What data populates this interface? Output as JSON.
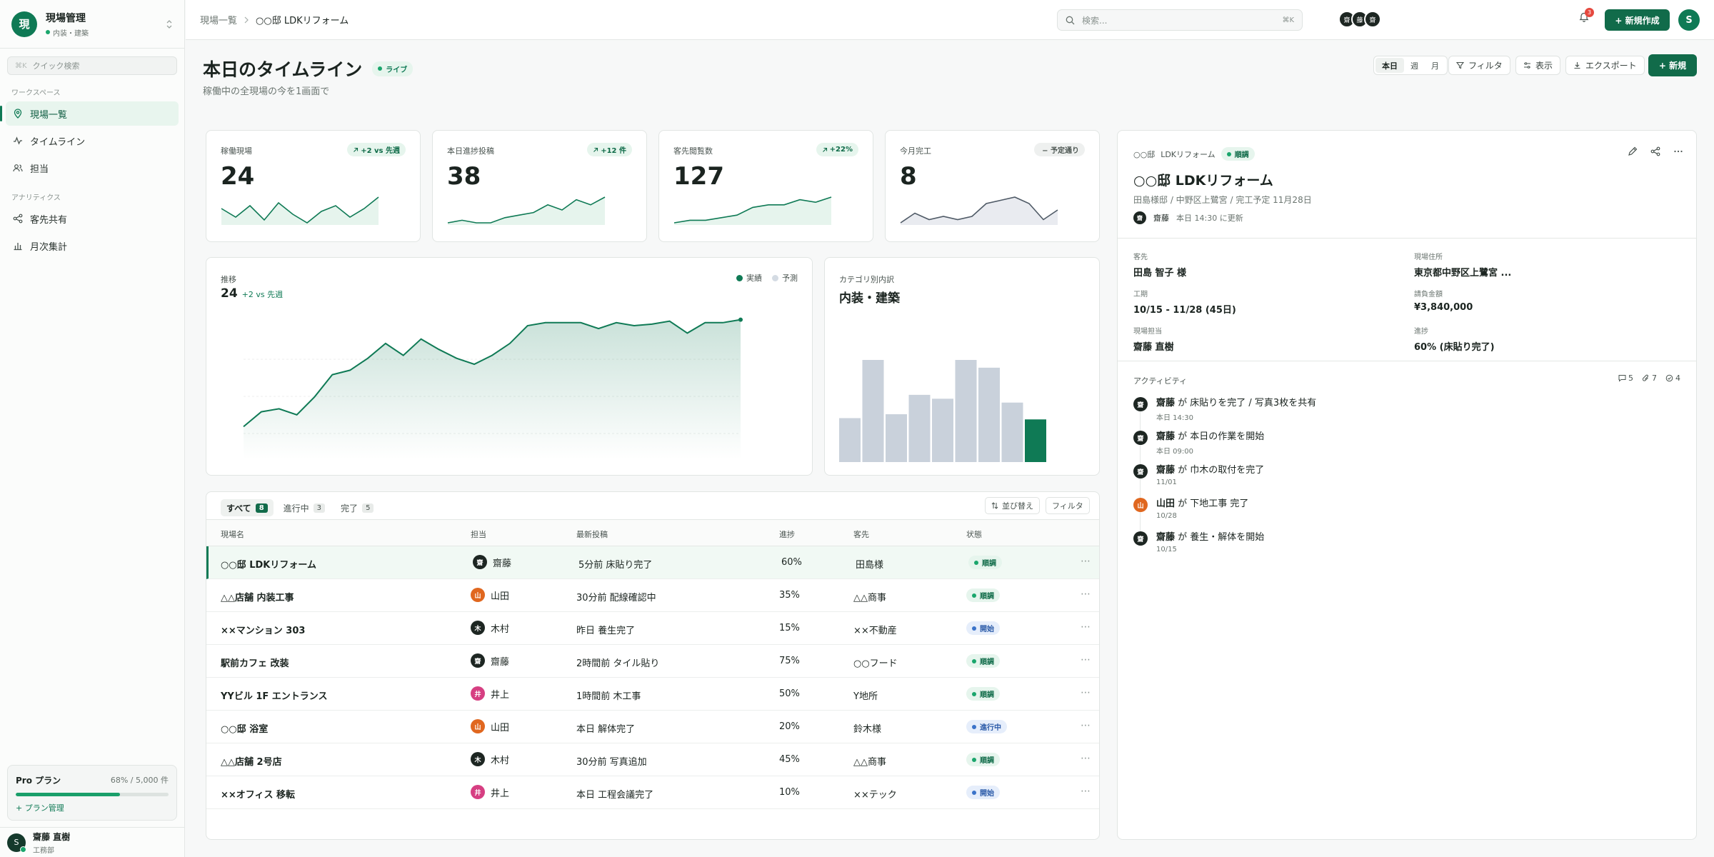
{
  "sidebar": {
    "app_title": "現場管理",
    "app_sub": "内装・建築",
    "logo": "現",
    "quick_kbd": "⌘K",
    "quick_placeholder": "クイック検索",
    "workspace_label": "ワークスペース",
    "analytics_label": "アナリティクス",
    "workspace_items": [
      {
        "label": "現場一覧",
        "icon": "map-pin-icon"
      },
      {
        "label": "タイムライン",
        "icon": "activity-icon"
      },
      {
        "label": "担当",
        "icon": "users-icon"
      }
    ],
    "analytics_items": [
      {
        "label": "客先共有",
        "icon": "share-icon"
      },
      {
        "label": "月次集計",
        "icon": "bar-chart-icon"
      }
    ],
    "plan": {
      "name": "Pro プラン",
      "usage": "68% / 5,000 件",
      "progress": 0.68,
      "link": "+ プラン管理"
    },
    "user": {
      "initial": "S",
      "name": "齋藤 直樹",
      "role": "工務部"
    }
  },
  "topbar": {
    "breadcrumb": [
      "現場一覧",
      "○○邸 LDKリフォーム"
    ],
    "search_placeholder": "検索...",
    "search_kbd": "⌘K",
    "avatars": [
      "齋",
      "藤",
      "齋"
    ],
    "notifications": "3",
    "new_label": "+ 新規作成",
    "me": "S"
  },
  "header": {
    "title": "本日のタイムライン",
    "live": "ライブ",
    "subtitle": "稼働中の全現場の今を1画面で",
    "segments": [
      "本日",
      "週",
      "月"
    ],
    "filter": "フィルタ",
    "view": "表示",
    "export": "エクスポート",
    "new": "+ 新規"
  },
  "kpis": [
    {
      "label": "稼働現場",
      "value": "24",
      "chip": "+2 vs 先週",
      "trend": [
        8,
        5,
        9,
        4,
        10,
        6,
        3,
        7,
        9,
        5,
        8,
        12
      ]
    },
    {
      "label": "本日進捗投稿",
      "value": "38",
      "chip": "+12 件",
      "trend": [
        2,
        3,
        2,
        2,
        4,
        5,
        6,
        9,
        7,
        11,
        9,
        12
      ]
    },
    {
      "label": "客先閲覧数",
      "value": "127",
      "chip": "+22%",
      "trend": [
        2,
        3,
        3,
        4,
        5,
        8,
        9,
        9,
        11,
        10,
        12
      ]
    },
    {
      "label": "今月完工",
      "value": "8",
      "chip": "− 予定通り",
      "trend": [
        3,
        6,
        4,
        5,
        4,
        5,
        9,
        10,
        11,
        9,
        4,
        7
      ]
    }
  ],
  "trend_panel": {
    "label": "推移",
    "value": "24",
    "delta": "+2 vs 先週",
    "legend": [
      "実績",
      "予測"
    ]
  },
  "category_panel": {
    "label": "カテゴリ別内訳",
    "title": "内装・建築"
  },
  "chart_data": [
    {
      "type": "line",
      "title": "推移",
      "x": [
        1,
        2,
        3,
        4,
        5,
        6,
        7,
        8,
        9,
        10,
        11,
        12,
        13,
        14,
        15,
        16,
        17,
        18,
        19,
        20,
        21,
        22,
        23,
        24,
        25,
        26,
        27,
        28,
        29
      ],
      "series": [
        {
          "name": "実績",
          "values": [
            2,
            3,
            3.2,
            2.8,
            4,
            5.5,
            5.8,
            6.6,
            7.6,
            6.8,
            7.9,
            7.2,
            6.6,
            6.2,
            6.8,
            7.6,
            8.8,
            9,
            9,
            9,
            8.6,
            9,
            8.8,
            8.9,
            9.1,
            8.3,
            9,
            9,
            9.2
          ]
        }
      ],
      "ylim": [
        0,
        10
      ]
    },
    {
      "type": "bar",
      "title": "カテゴリ別内訳",
      "categories": [
        "1",
        "2",
        "3",
        "4",
        "5",
        "6",
        "7",
        "8",
        "9"
      ],
      "values": [
        34,
        79,
        37,
        52,
        49,
        79,
        73,
        46,
        33
      ],
      "highlight_index": 8
    }
  ],
  "table": {
    "tabs": [
      {
        "label": "すべて",
        "count": "8"
      },
      {
        "label": "進行中",
        "count": "3"
      },
      {
        "label": "完了",
        "count": "5"
      }
    ],
    "sort": "並び替え",
    "filter": "フィルタ",
    "columns": [
      "現場名",
      "担当",
      "最新投稿",
      "進捗",
      "客先",
      "状態"
    ],
    "rows": [
      {
        "name": "○○邸 LDKリフォーム",
        "assignee": "齋藤",
        "av": "齋",
        "avc": "#1d2622",
        "post": "5分前 床貼り完了",
        "progress": "60%",
        "client": "田島様",
        "status": "順調",
        "st": "good"
      },
      {
        "name": "△△店舗 内装工事",
        "assignee": "山田",
        "av": "山",
        "avc": "#e0671f",
        "post": "30分前 配線確認中",
        "progress": "35%",
        "client": "△△商事",
        "status": "順調",
        "st": "good"
      },
      {
        "name": "××マンション 303",
        "assignee": "木村",
        "av": "木",
        "avc": "#1d2622",
        "post": "昨日 養生完了",
        "progress": "15%",
        "client": "××不動産",
        "status": "開始",
        "st": "blue"
      },
      {
        "name": "駅前カフェ 改装",
        "assignee": "齋藤",
        "av": "齋",
        "avc": "#1d2622",
        "post": "2時間前 タイル貼り",
        "progress": "75%",
        "client": "○○フード",
        "status": "順調",
        "st": "good"
      },
      {
        "name": "YYビル 1F エントランス",
        "assignee": "井上",
        "av": "井",
        "avc": "#d63f82",
        "post": "1時間前 木工事",
        "progress": "50%",
        "client": "Y地所",
        "status": "順調",
        "st": "good"
      },
      {
        "name": "○○邸 浴室",
        "assignee": "山田",
        "av": "山",
        "avc": "#e0671f",
        "post": "本日 解体完了",
        "progress": "20%",
        "client": "鈴木様",
        "status": "進行中",
        "st": "blue"
      },
      {
        "name": "△△店舗 2号店",
        "assignee": "木村",
        "av": "木",
        "avc": "#1d2622",
        "post": "30分前 写真追加",
        "progress": "45%",
        "client": "△△商事",
        "status": "順調",
        "st": "good"
      },
      {
        "name": "××オフィス 移転",
        "assignee": "井上",
        "av": "井",
        "avc": "#d63f82",
        "post": "本日 工程会議完了",
        "progress": "10%",
        "client": "××テック",
        "status": "開始",
        "st": "blue"
      }
    ]
  },
  "detail": {
    "crumb": "○○邸",
    "crumb2": "LDKリフォーム",
    "status": "順調",
    "title": "○○邸 LDKリフォーム",
    "subtitle": "田島様邸 / 中野区上鷺宮 / 完工予定 11月28日",
    "updater": "齋藤",
    "updated": "本日 14:30 に更新",
    "fields": [
      {
        "k": "客先",
        "v": "田島 智子 様"
      },
      {
        "k": "現場住所",
        "v": "東京都中野区上鷺宮 ..."
      },
      {
        "k": "工期",
        "v": "10/15 - 11/28 (45日)"
      },
      {
        "k": "請負金額",
        "v": "¥3,840,000"
      },
      {
        "k": "現場担当",
        "v": "齋藤 直樹"
      },
      {
        "k": "進捗",
        "v": "60% (床貼り完了)"
      }
    ],
    "activity_title": "アクティビティ",
    "counts": {
      "comments": "5",
      "attachments": "7",
      "checks": "4"
    },
    "activity": [
      {
        "who": "齋藤",
        "av": "齋",
        "avc": "#1d2622",
        "mid": " が ",
        "text": "床貼りを完了 / 写真3枚を共有",
        "time": "本日 14:30"
      },
      {
        "who": "齋藤",
        "av": "齋",
        "avc": "#1d2622",
        "mid": " が ",
        "text": "本日の作業を開始",
        "time": "本日 09:00"
      },
      {
        "who": "齋藤",
        "av": "齋",
        "avc": "#1d2622",
        "mid": " が ",
        "text": "巾木の取付を完了",
        "time": "11/01"
      },
      {
        "who": "山田",
        "av": "山",
        "avc": "#e0671f",
        "mid": " が ",
        "text": "下地工事 完了",
        "time": "10/28"
      },
      {
        "who": "齋藤",
        "av": "齋",
        "avc": "#1d2622",
        "mid": " が ",
        "text": "養生・解体を開始",
        "time": "10/15"
      }
    ]
  },
  "colors": {
    "accent": "#0f7a55",
    "primary": "#116b4a",
    "bar_gray": "#c9d1db"
  }
}
